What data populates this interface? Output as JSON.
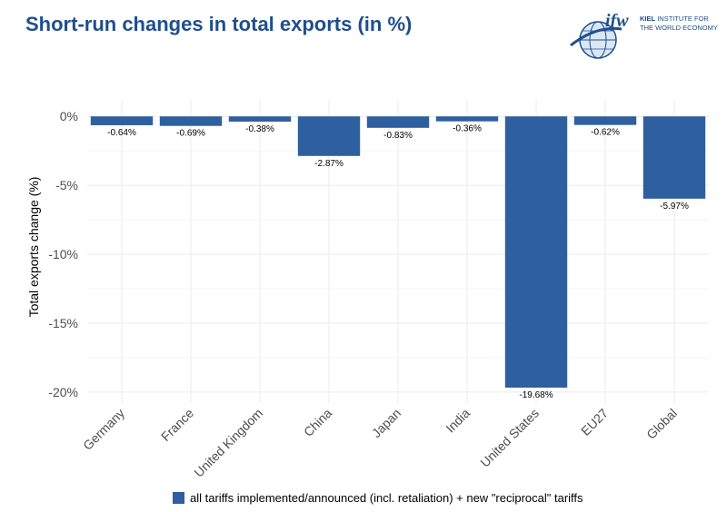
{
  "header": {
    "title": "Short-run changes in total exports (in %)"
  },
  "logo": {
    "wordmark": "ifw",
    "institute_bold": "KIEL",
    "institute_line1": "INSTITUTE FOR",
    "institute_line2": "THE WORLD ECONOMY"
  },
  "colors": {
    "bar": "#2e5f9e",
    "title": "#1f4e8c",
    "grid": "#ebebeb"
  },
  "chart_data": {
    "type": "bar",
    "title": "Short-run changes in total exports (in %)",
    "xlabel": "",
    "ylabel": "Total exports change (%)",
    "categories": [
      "Germany",
      "France",
      "United Kingdom",
      "China",
      "Japan",
      "India",
      "United States",
      "EU27",
      "Global"
    ],
    "series": [
      {
        "name": "all tariffs implemented/announced (incl. retaliation) + new \"reciprocal\" tariffs",
        "values": [
          -0.64,
          -0.69,
          -0.38,
          -2.87,
          -0.83,
          -0.36,
          -19.68,
          -0.62,
          -5.97
        ],
        "labels": [
          "-0.64%",
          "-0.69%",
          "-0.38%",
          "-2.87%",
          "-0.83%",
          "-0.36%",
          "-19.68%",
          "-0.62%",
          "-5.97%"
        ]
      }
    ],
    "yticks": [
      0,
      -5,
      -10,
      -15,
      -20
    ],
    "ytick_labels": [
      "0%",
      "-5%",
      "-10%",
      "-15%",
      "-20%"
    ],
    "ylim": [
      -20.8,
      1.2
    ],
    "grid": true,
    "legend_position": "bottom"
  },
  "legend": {
    "label": "all tariffs implemented/announced (incl. retaliation) + new \"reciprocal\" tariffs"
  }
}
